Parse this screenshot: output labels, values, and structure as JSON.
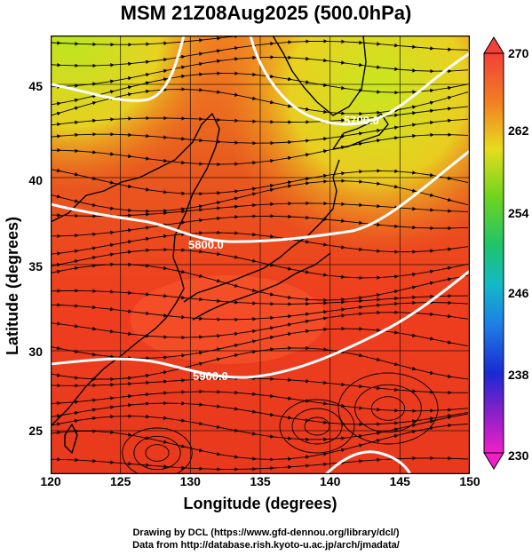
{
  "title": "MSM 21Z08Aug2025 (500.0hPa)",
  "xlabel": "Longitude (degrees)",
  "ylabel": "Latitude  (degrees)",
  "xticks": [
    "120",
    "125",
    "130",
    "135",
    "140",
    "145",
    "150"
  ],
  "yticks": [
    "45",
    "40",
    "35",
    "30",
    "25"
  ],
  "colorbar": {
    "ticks": [
      "270",
      "262",
      "254",
      "246",
      "238",
      "230"
    ],
    "min": 230,
    "max": 270
  },
  "contours": [
    {
      "label": "5800.0",
      "value": 5800
    },
    {
      "label": "5900.0",
      "value": 5900
    },
    {
      "label": "5700.0",
      "value": 5700
    }
  ],
  "credits": {
    "line1": "Drawing by DCL (https://www.gfd-dennou.org/library/dcl/)",
    "line2": "Data from http://database.rish.kyoto-u.ac.jp/arch/jmadata/"
  },
  "colors": {
    "warm": "#e8411f",
    "hot": "#ff5a2e",
    "cool": "#c9e61f",
    "contour": "#ffffff"
  },
  "chart_data": {
    "type": "heatmap",
    "title": "MSM 21Z08Aug2025 (500.0hPa)",
    "xlabel": "Longitude (degrees)",
    "ylabel": "Latitude  (degrees)",
    "xlim": [
      120,
      150
    ],
    "ylim": [
      22.4,
      47.6
    ],
    "colorbar_range": [
      230,
      270
    ]
  }
}
